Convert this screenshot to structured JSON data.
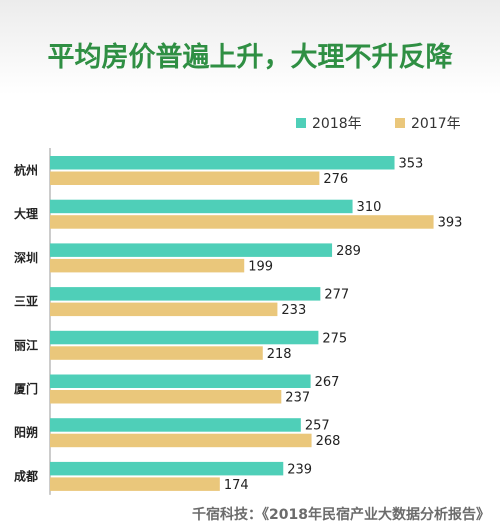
{
  "chart_data": {
    "type": "bar",
    "orientation": "horizontal",
    "title": "平均房价普遍上升，大理不升反降",
    "categories": [
      "杭州",
      "大理",
      "深圳",
      "三亚",
      "丽江",
      "厦门",
      "阳朔",
      "成都"
    ],
    "series": [
      {
        "name": "2018年",
        "color": "#4fcfb8",
        "values": [
          353,
          310,
          289,
          277,
          275,
          267,
          257,
          239
        ]
      },
      {
        "name": "2017年",
        "color": "#eac77b",
        "values": [
          276,
          393,
          199,
          233,
          218,
          237,
          268,
          174
        ]
      }
    ],
    "legend_position": "top-right",
    "grid": false
  },
  "source_text": "千宿科技：《2018年民宿产业大数据分析报告》"
}
